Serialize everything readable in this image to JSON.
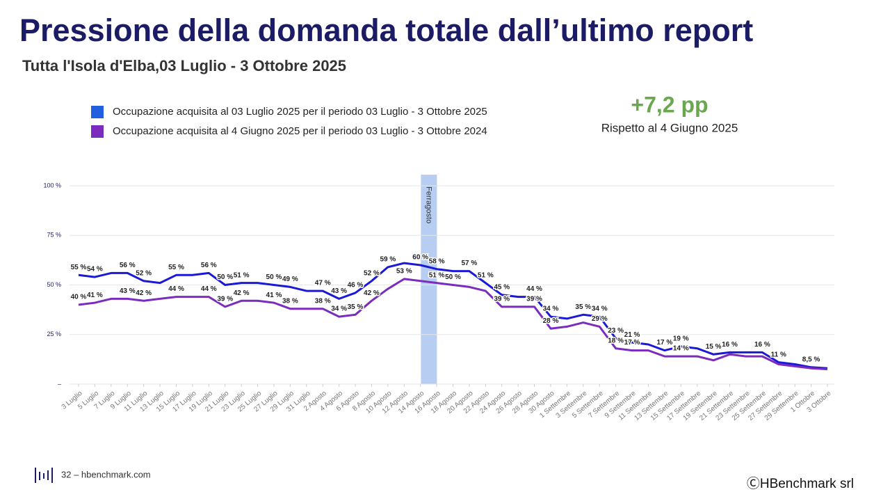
{
  "slide": {
    "title": "Pressione della domanda totale dall’ultimo report",
    "subtitle": "Tutta l'Isola d'Elba,03 Luglio - 3 Ottobre 2025",
    "kpi": {
      "value": "+7,2 pp",
      "caption": "Rispetto al 4 Giugno 2025"
    },
    "footer": {
      "page": "32 – hbenchmark.com",
      "copyright": "ⒸHBenchmark srl"
    }
  },
  "chart_data": {
    "type": "line",
    "categories": [
      "3 Luglio",
      "5 Luglio",
      "7 Luglio",
      "9 Luglio",
      "11 Luglio",
      "13 Luglio",
      "15 Luglio",
      "17 Luglio",
      "19 Luglio",
      "21 Luglio",
      "23 Luglio",
      "25 Luglio",
      "27 Luglio",
      "29 Luglio",
      "31 Luglio",
      "2 Agosto",
      "4 Agosto",
      "6 Agosto",
      "8 Agosto",
      "10 Agosto",
      "12 Agosto",
      "14 Agosto",
      "16 Agosto",
      "18 Agosto",
      "20 Agosto",
      "22 Agosto",
      "24 Agosto",
      "26 Agosto",
      "28 Agosto",
      "30 Agosto",
      "1 Settembre",
      "3 Settembre",
      "5 Settembre",
      "7 Settembre",
      "9 Settembre",
      "11 Settembre",
      "13 Settembre",
      "15 Settembre",
      "17 Settembre",
      "19 Settembre",
      "21 Settembre",
      "23 Settembre",
      "25 Settembre",
      "27 Settembre",
      "29 Settembre",
      "1 Ottobre",
      "3 Ottobre"
    ],
    "series": [
      {
        "name": "Occupazione acquisita al 03 Luglio 2025 per il periodo 03 Luglio - 3 Ottobre 2025",
        "color": "#1a1ad6",
        "values": [
          55,
          54,
          56,
          56,
          52,
          51,
          55,
          55,
          56,
          50,
          51,
          51,
          50,
          49,
          47,
          47,
          43,
          46,
          52,
          59,
          61,
          60,
          58,
          57,
          57,
          51,
          45,
          44,
          44,
          34,
          33,
          35,
          34,
          23,
          21,
          20,
          17,
          19,
          18,
          15,
          16,
          16,
          16,
          11,
          10,
          8.5,
          8
        ],
        "value_labels": [
          "55 %",
          "54 %",
          null,
          "56 %",
          "52 %",
          null,
          "55 %",
          null,
          "56 %",
          "50 %",
          "51 %",
          null,
          "50 %",
          "49 %",
          null,
          "47 %",
          "43 %",
          "46 %",
          "52 %",
          "59 %",
          null,
          "60 %",
          "58 %",
          null,
          "57 %",
          "51 %",
          "45 %",
          null,
          "44 %",
          "34 %",
          null,
          "35 %",
          "34 %",
          "23 %",
          "21 %",
          null,
          "17 %",
          "19 %",
          null,
          "15 %",
          "16 %",
          null,
          "16 %",
          "11 %",
          null,
          "8,5 %",
          null
        ]
      },
      {
        "name": "Occupazione acquisita al 4 Giugno 2025 per il periodo 03 Luglio - 3 Ottobre 2024",
        "color": "#7b2cbf",
        "values": [
          40,
          41,
          43,
          43,
          42,
          43,
          44,
          44,
          44,
          39,
          42,
          42,
          41,
          38,
          38,
          38,
          34,
          35,
          42,
          48,
          53,
          52,
          51,
          50,
          49,
          47,
          39,
          39,
          39,
          28,
          29,
          31,
          29,
          18,
          17,
          17,
          14,
          14,
          14,
          12,
          15,
          14,
          14,
          10,
          9,
          8,
          7.5
        ],
        "value_labels": [
          "40 %",
          "41 %",
          null,
          "43 %",
          "42 %",
          null,
          "44 %",
          null,
          "44 %",
          "39 %",
          "42 %",
          null,
          "41 %",
          "38 %",
          null,
          "38 %",
          "34 %",
          "35 %",
          "42 %",
          null,
          "53 %",
          null,
          "51 %",
          "50 %",
          null,
          null,
          "39 %",
          null,
          "39 %",
          "28 %",
          null,
          null,
          "29 %",
          "18 %",
          "17 %",
          null,
          null,
          "14 %",
          null,
          null,
          null,
          null,
          null,
          null,
          null,
          null,
          null
        ]
      }
    ],
    "ylim": [
      0,
      100
    ],
    "yticks": [
      {
        "value": 0,
        "label": "–"
      },
      {
        "value": 25,
        "label": "25 %"
      },
      {
        "value": 50,
        "label": "50 %"
      },
      {
        "value": 75,
        "label": "75 %"
      },
      {
        "value": 100,
        "label": "100 %"
      }
    ],
    "grid": true,
    "annotations": [
      {
        "text": "Ferragosto",
        "category": "16 Agosto"
      }
    ]
  }
}
